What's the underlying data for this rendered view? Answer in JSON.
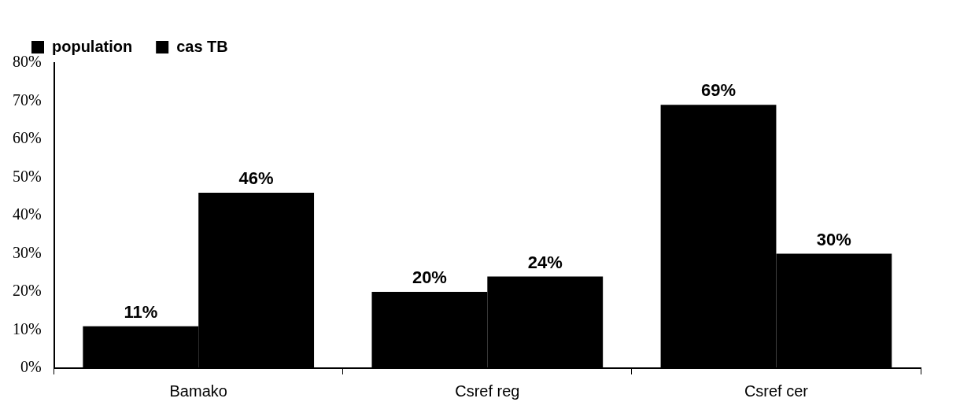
{
  "chart_data": {
    "type": "bar",
    "categories": [
      "Bamako",
      "Csref reg",
      "Csref cer"
    ],
    "series": [
      {
        "name": "population",
        "color": "#000000",
        "values": [
          11,
          20,
          69
        ],
        "value_labels": [
          "11%",
          "20%",
          "69%"
        ]
      },
      {
        "name": "cas TB",
        "color": "#000000",
        "values": [
          46,
          24,
          30
        ],
        "value_labels": [
          "46%",
          "24%",
          "30%"
        ]
      }
    ],
    "ylim": [
      0,
      80
    ],
    "yticks": [
      {
        "value": 0,
        "label": "0%"
      },
      {
        "value": 10,
        "label": "10%"
      },
      {
        "value": 20,
        "label": "20%"
      },
      {
        "value": 30,
        "label": "30%"
      },
      {
        "value": 40,
        "label": "40%"
      },
      {
        "value": 50,
        "label": "50%"
      },
      {
        "value": 60,
        "label": "60%"
      },
      {
        "value": 70,
        "label": "70%"
      },
      {
        "value": 80,
        "label": "80%"
      }
    ],
    "grid": false,
    "legend": "top left"
  }
}
